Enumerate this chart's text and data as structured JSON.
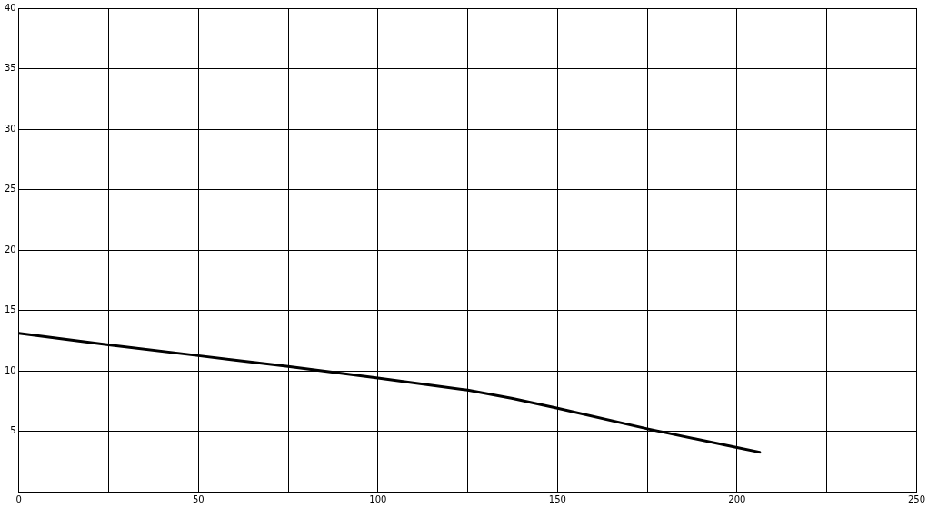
{
  "chart_data": {
    "type": "line",
    "x": [
      0,
      25,
      50,
      75,
      100,
      125,
      137.5,
      150,
      175,
      200,
      206.3
    ],
    "series": [
      {
        "color": "#000000",
        "values": [
          13.1,
          12.15,
          11.25,
          10.35,
          9.4,
          8.4,
          7.7,
          6.9,
          5.2,
          3.65,
          3.26
        ]
      }
    ],
    "xlim": [
      0,
      250
    ],
    "xticks": [
      0,
      {
        "value": 25,
        "label": null
      },
      50,
      {
        "value": 75,
        "label": null
      },
      100,
      {
        "value": 125,
        "label": null
      },
      150,
      {
        "value": 175,
        "label": null
      },
      200,
      {
        "value": 225,
        "label": null
      },
      250
    ],
    "ylim": [
      0,
      40
    ],
    "yticks": [
      {
        "value": 0,
        "label": null
      },
      5,
      10,
      15,
      20,
      25,
      30,
      35,
      40
    ],
    "grid": true,
    "legend": false,
    "marker": "none",
    "line_style": "solid"
  }
}
